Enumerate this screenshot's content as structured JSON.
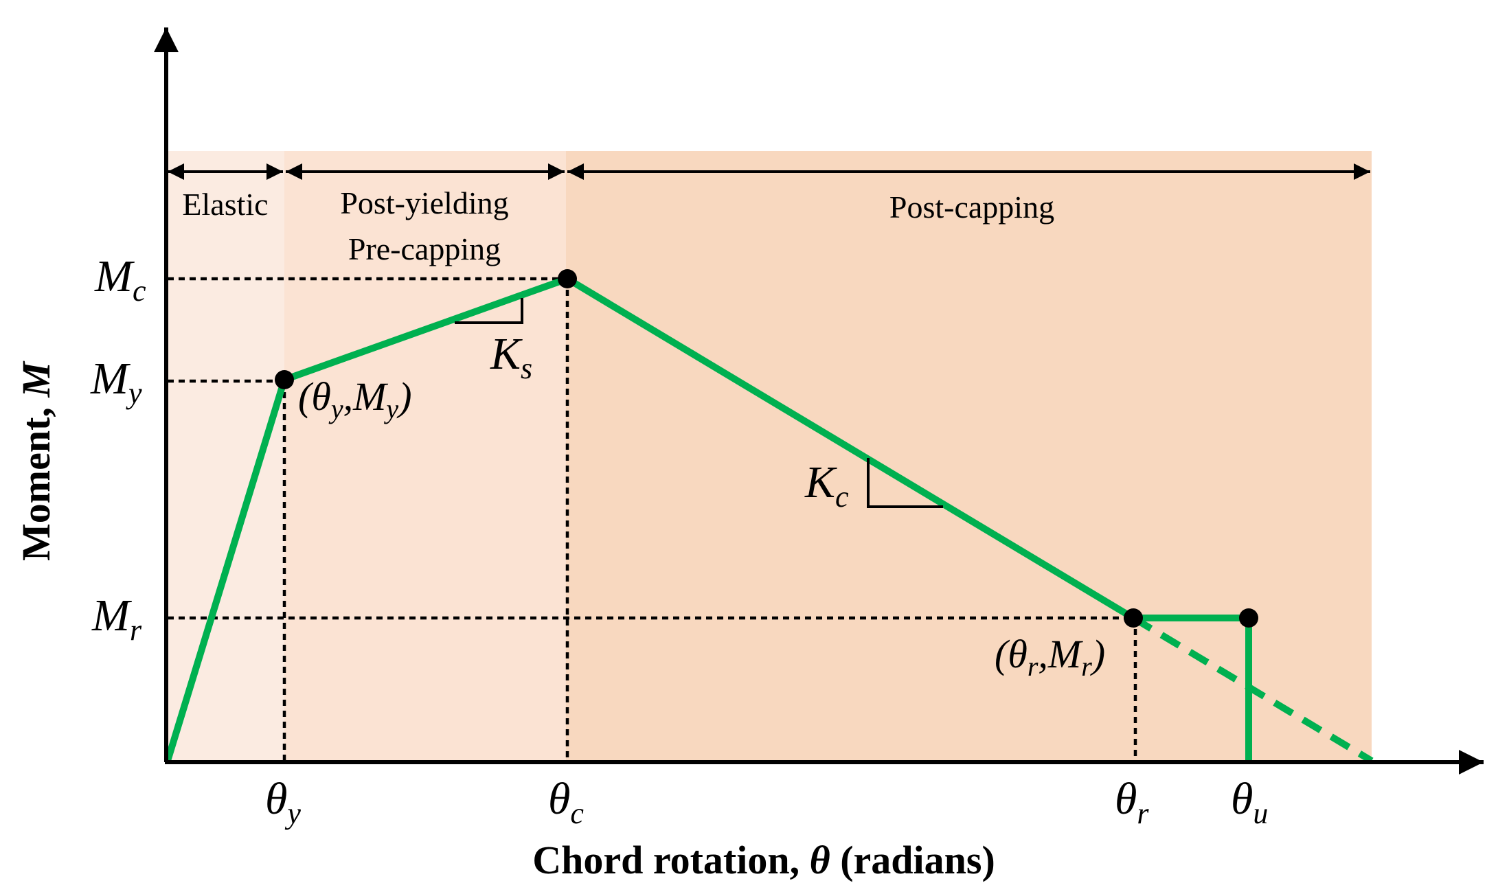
{
  "axes": {
    "x_title_pre": "Chord rotation, ",
    "x_title_symbol": "θ",
    "x_title_post": " (radians)",
    "y_title_pre": "Moment, ",
    "y_title_symbol": "M"
  },
  "regions": [
    {
      "label": "Elastic",
      "color": "#fbebe1"
    },
    {
      "label_line1": "Post-yielding",
      "label_line2": "Pre-capping",
      "color": "#fbe3d3"
    },
    {
      "label": "Post-capping",
      "color": "#f8d8bf"
    }
  ],
  "y_ticks": [
    {
      "base": "M",
      "sub": "c"
    },
    {
      "base": "M",
      "sub": "y"
    },
    {
      "base": "M",
      "sub": "r"
    }
  ],
  "x_ticks": [
    {
      "base": "θ",
      "sub": "y"
    },
    {
      "base": "θ",
      "sub": "c"
    },
    {
      "base": "θ",
      "sub": "r"
    },
    {
      "base": "θ",
      "sub": "u"
    }
  ],
  "point_labels": {
    "yield": {
      "open": "(",
      "t": "θ",
      "ts": "y",
      "sep": ",",
      "m": "M",
      "ms": "y",
      "close": ")"
    },
    "residual": {
      "open": "(",
      "t": "θ",
      "ts": "r",
      "sep": ",",
      "m": "M",
      "ms": "r",
      "close": ")"
    }
  },
  "slopes": {
    "ks": {
      "base": "K",
      "sub": "s"
    },
    "kc": {
      "base": "K",
      "sub": "c"
    }
  },
  "colors": {
    "curve": "#00b050",
    "axis": "#000000"
  }
}
